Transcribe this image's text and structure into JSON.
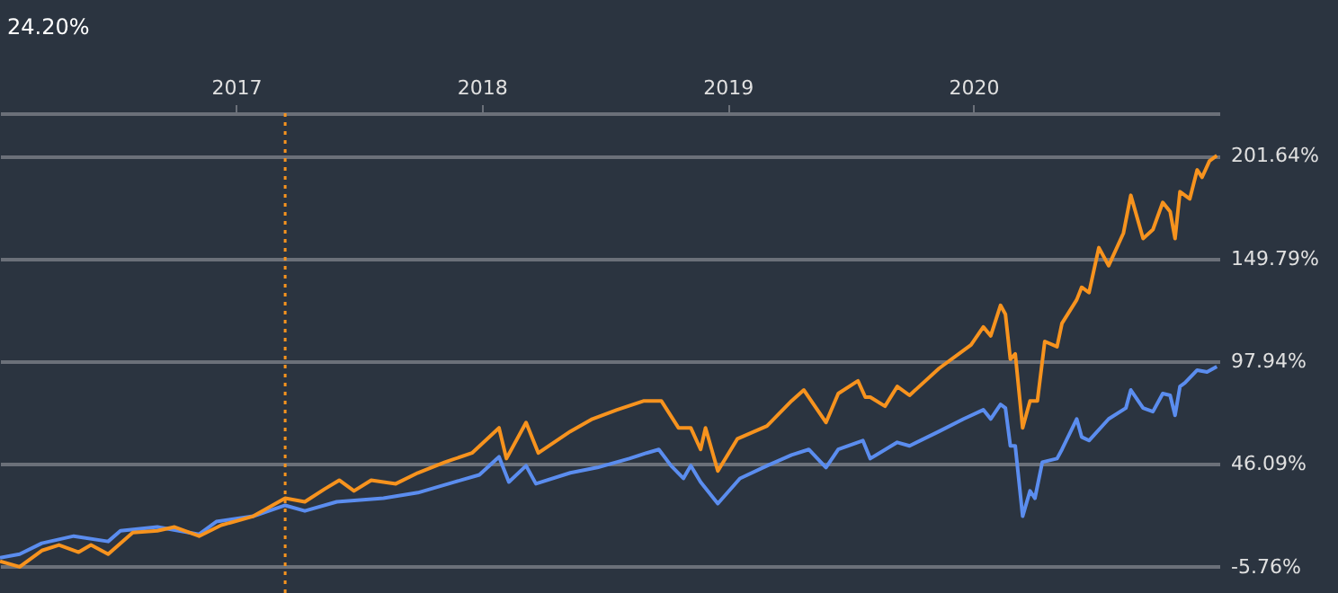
{
  "chart_data": {
    "type": "line",
    "annotations": [
      "24.20%"
    ],
    "xlim": [
      2016.04,
      2021.0
    ],
    "xticks": [
      2017,
      2018,
      2019,
      2020
    ],
    "ylim": [
      -19,
      223
    ],
    "yticks": [
      {
        "value": -5.76,
        "label": "-5.76%"
      },
      {
        "value": 46.09,
        "label": "46.09%"
      },
      {
        "value": 97.94,
        "label": "97.94%"
      },
      {
        "value": 149.79,
        "label": "149.79%"
      },
      {
        "value": 201.64,
        "label": "201.64%"
      }
    ],
    "grid": "y",
    "legend": false,
    "marker": "none",
    "line_style": "solid",
    "ref_lines": [
      {
        "axis": "x",
        "value": 2017.2,
        "color": "#f7931e",
        "line_style": "dotted"
      }
    ],
    "series": [
      {
        "color": "#5b8def",
        "x": [
          2016.04,
          2016.12,
          2016.21,
          2016.34,
          2016.48,
          2016.53,
          2016.68,
          2016.85,
          2016.92,
          2017.07,
          2017.2,
          2017.28,
          2017.41,
          2017.6,
          2017.74,
          2017.89,
          2017.99,
          2018.07,
          2018.11,
          2018.18,
          2018.22,
          2018.36,
          2018.47,
          2018.6,
          2018.67,
          2018.72,
          2018.77,
          2018.82,
          2018.85,
          2018.89,
          2018.96,
          2019.05,
          2019.16,
          2019.26,
          2019.33,
          2019.4,
          2019.45,
          2019.55,
          2019.58,
          2019.69,
          2019.74,
          2019.86,
          2019.96,
          2020.04,
          2020.07,
          2020.11,
          2020.13,
          2020.15,
          2020.17,
          2020.2,
          2020.23,
          2020.25,
          2020.28,
          2020.34,
          2020.36,
          2020.42,
          2020.44,
          2020.47,
          2020.55,
          2020.62,
          2020.64,
          2020.69,
          2020.73,
          2020.77,
          2020.8,
          2020.82,
          2020.84,
          2020.86,
          2020.91,
          2020.95,
          2020.99
        ],
        "values": [
          -1.2,
          0.6,
          6.1,
          9.7,
          7.0,
          12.4,
          14.3,
          10.6,
          17.0,
          19.7,
          25.2,
          22.4,
          27.0,
          28.8,
          31.6,
          37.0,
          40.6,
          49.7,
          37.0,
          45.2,
          36.1,
          41.6,
          44.3,
          48.8,
          51.6,
          53.4,
          45.2,
          38.8,
          45.2,
          37.0,
          26.1,
          38.8,
          45.2,
          50.6,
          53.4,
          44.3,
          53.4,
          57.9,
          48.8,
          57.0,
          55.2,
          62.5,
          68.8,
          73.4,
          68.8,
          76.1,
          74.3,
          55.2,
          55.2,
          19.7,
          32.5,
          28.8,
          47.0,
          48.8,
          53.4,
          68.8,
          59.7,
          57.9,
          68.8,
          74.3,
          83.4,
          74.3,
          72.5,
          81.6,
          80.7,
          70.6,
          85.2,
          87.0,
          93.4,
          92.5,
          95.2
        ]
      },
      {
        "color": "#f7931e",
        "x": [
          2016.04,
          2016.12,
          2016.21,
          2016.28,
          2016.36,
          2016.41,
          2016.48,
          2016.58,
          2016.68,
          2016.75,
          2016.85,
          2016.94,
          2017.07,
          2017.2,
          2017.28,
          2017.36,
          2017.42,
          2017.48,
          2017.55,
          2017.65,
          2017.74,
          2017.85,
          2017.96,
          2018.07,
          2018.1,
          2018.18,
          2018.23,
          2018.36,
          2018.45,
          2018.55,
          2018.66,
          2018.73,
          2018.8,
          2018.85,
          2018.89,
          2018.91,
          2018.96,
          2019.04,
          2019.16,
          2019.26,
          2019.31,
          2019.4,
          2019.45,
          2019.53,
          2019.56,
          2019.58,
          2019.64,
          2019.69,
          2019.74,
          2019.86,
          2019.96,
          2019.99,
          2020.04,
          2020.07,
          2020.11,
          2020.13,
          2020.15,
          2020.17,
          2020.2,
          2020.23,
          2020.26,
          2020.29,
          2020.34,
          2020.36,
          2020.42,
          2020.44,
          2020.47,
          2020.51,
          2020.55,
          2020.61,
          2020.64,
          2020.69,
          2020.73,
          2020.77,
          2020.8,
          2020.82,
          2020.84,
          2020.88,
          2020.91,
          2020.93,
          2020.96,
          2020.99
        ],
        "values": [
          -3.0,
          -5.8,
          2.4,
          5.2,
          1.6,
          5.2,
          0.6,
          11.5,
          12.4,
          14.3,
          9.7,
          15.2,
          19.7,
          28.8,
          27.0,
          33.4,
          37.9,
          32.5,
          37.9,
          36.1,
          41.6,
          47.0,
          51.6,
          64.3,
          48.8,
          67.0,
          51.6,
          62.5,
          68.8,
          73.4,
          77.9,
          77.9,
          64.3,
          64.3,
          53.4,
          64.3,
          42.5,
          58.8,
          65.2,
          77.9,
          83.4,
          67.0,
          81.6,
          88.0,
          79.8,
          79.8,
          75.2,
          85.2,
          80.7,
          94.3,
          103.4,
          106.1,
          115.2,
          110.7,
          126.1,
          121.6,
          98.9,
          101.6,
          64.3,
          77.9,
          77.9,
          107.9,
          105.2,
          117.0,
          128.9,
          135.2,
          132.5,
          155.2,
          146.1,
          162.5,
          181.6,
          159.8,
          164.3,
          178.0,
          173.4,
          159.8,
          183.4,
          179.8,
          194.4,
          190.7,
          198.9,
          201.6
        ]
      }
    ]
  }
}
